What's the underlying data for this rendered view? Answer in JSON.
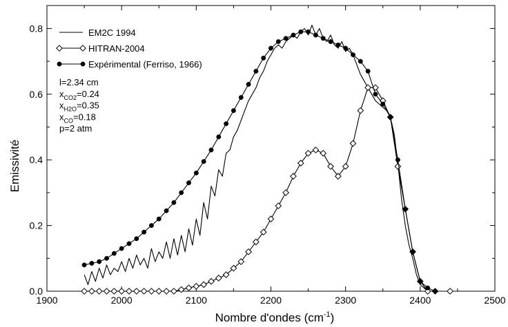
{
  "chart_data": {
    "type": "line",
    "xlabel": "Nombre d'ondes (cm",
    "xlabel_sup": "-1",
    "xlabel_end": ")",
    "ylabel": "Emissivité",
    "xlim": [
      1900,
      2500
    ],
    "ylim": [
      0,
      0.87
    ],
    "x_ticks": [
      1900,
      2000,
      2100,
      2200,
      2300,
      2400,
      2500
    ],
    "y_ticks": [
      0.0,
      0.2,
      0.4,
      0.6,
      0.8
    ],
    "grid": false,
    "legend_position": "top-left",
    "series": [
      {
        "name": "EM2C 1994",
        "marker": "none",
        "x": [
          1950,
          1955,
          1960,
          1965,
          1970,
          1975,
          1980,
          1985,
          1990,
          1995,
          2000,
          2005,
          2010,
          2015,
          2020,
          2025,
          2030,
          2035,
          2040,
          2045,
          2050,
          2055,
          2060,
          2065,
          2070,
          2075,
          2080,
          2085,
          2090,
          2095,
          2100,
          2105,
          2110,
          2115,
          2120,
          2125,
          2130,
          2135,
          2140,
          2145,
          2150,
          2155,
          2160,
          2165,
          2170,
          2175,
          2180,
          2185,
          2190,
          2195,
          2200,
          2205,
          2210,
          2215,
          2220,
          2225,
          2230,
          2235,
          2240,
          2245,
          2250,
          2255,
          2260,
          2265,
          2270,
          2275,
          2280,
          2285,
          2290,
          2295,
          2300,
          2305,
          2310,
          2315,
          2320,
          2325,
          2330,
          2335,
          2340,
          2345,
          2350,
          2355,
          2360,
          2365,
          2370,
          2375,
          2380,
          2385,
          2390,
          2395,
          2400,
          2405,
          2410,
          2420,
          2440
        ],
        "y": [
          0.05,
          0.02,
          0.06,
          0.03,
          0.07,
          0.04,
          0.08,
          0.05,
          0.07,
          0.06,
          0.09,
          0.06,
          0.1,
          0.07,
          0.11,
          0.08,
          0.1,
          0.07,
          0.13,
          0.09,
          0.12,
          0.1,
          0.15,
          0.1,
          0.16,
          0.11,
          0.17,
          0.12,
          0.19,
          0.14,
          0.22,
          0.17,
          0.27,
          0.22,
          0.32,
          0.29,
          0.37,
          0.35,
          0.42,
          0.43,
          0.47,
          0.49,
          0.52,
          0.55,
          0.58,
          0.6,
          0.62,
          0.65,
          0.67,
          0.7,
          0.72,
          0.74,
          0.75,
          0.74,
          0.76,
          0.77,
          0.78,
          0.77,
          0.79,
          0.8,
          0.78,
          0.81,
          0.78,
          0.8,
          0.77,
          0.76,
          0.78,
          0.75,
          0.74,
          0.76,
          0.73,
          0.74,
          0.72,
          0.69,
          0.66,
          0.64,
          0.62,
          0.6,
          0.58,
          0.57,
          0.56,
          0.55,
          0.53,
          0.48,
          0.39,
          0.28,
          0.2,
          0.14,
          0.1,
          0.05,
          0.02,
          0.01,
          0.0,
          0.0,
          0.0
        ]
      },
      {
        "name": "HITRAN-2004",
        "marker": "diamond-open",
        "x": [
          1950,
          1960,
          1970,
          1980,
          1990,
          2000,
          2010,
          2020,
          2030,
          2040,
          2050,
          2060,
          2070,
          2080,
          2090,
          2100,
          2110,
          2120,
          2130,
          2140,
          2150,
          2160,
          2170,
          2180,
          2190,
          2200,
          2210,
          2220,
          2230,
          2240,
          2250,
          2260,
          2270,
          2280,
          2290,
          2300,
          2310,
          2320,
          2330,
          2340,
          2350,
          2360,
          2370,
          2380,
          2390,
          2400,
          2410,
          2420,
          2440
        ],
        "y": [
          0.0,
          0.0,
          0.0,
          0.0,
          0.0,
          0.0,
          0.0,
          0.0,
          0.0,
          0.0,
          0.0,
          0.0,
          0.0,
          0.005,
          0.01,
          0.015,
          0.02,
          0.03,
          0.04,
          0.05,
          0.07,
          0.09,
          0.12,
          0.15,
          0.18,
          0.22,
          0.26,
          0.3,
          0.35,
          0.39,
          0.42,
          0.43,
          0.42,
          0.38,
          0.35,
          0.38,
          0.45,
          0.55,
          0.62,
          0.62,
          0.58,
          0.53,
          0.38,
          0.25,
          0.12,
          0.03,
          0.0,
          0.0,
          0.0
        ]
      },
      {
        "name": "Expérimental (Ferriso, 1966)",
        "marker": "circle-filled",
        "x": [
          1950,
          1960,
          1970,
          1980,
          1990,
          2000,
          2010,
          2020,
          2030,
          2040,
          2050,
          2060,
          2070,
          2080,
          2090,
          2100,
          2110,
          2120,
          2130,
          2140,
          2150,
          2160,
          2170,
          2180,
          2190,
          2200,
          2210,
          2220,
          2230,
          2240,
          2250,
          2260,
          2270,
          2280,
          2290,
          2300,
          2310,
          2320,
          2330,
          2340,
          2350,
          2360,
          2370,
          2380,
          2390,
          2400,
          2410,
          2420
        ],
        "y": [
          0.08,
          0.085,
          0.09,
          0.1,
          0.115,
          0.13,
          0.145,
          0.16,
          0.18,
          0.2,
          0.22,
          0.245,
          0.27,
          0.3,
          0.33,
          0.36,
          0.395,
          0.43,
          0.47,
          0.51,
          0.55,
          0.59,
          0.63,
          0.67,
          0.71,
          0.74,
          0.76,
          0.77,
          0.78,
          0.79,
          0.79,
          0.78,
          0.77,
          0.76,
          0.75,
          0.74,
          0.72,
          0.7,
          0.67,
          0.6,
          0.57,
          0.53,
          0.4,
          0.25,
          0.12,
          0.03,
          0.01,
          0.0
        ]
      }
    ],
    "annotations": [
      {
        "base": "l=2.34 cm",
        "sub": "",
        "rest": ""
      },
      {
        "base": "x",
        "sub": "CO2",
        "rest": "=0.24"
      },
      {
        "base": "x",
        "sub": "H2O",
        "rest": "=0.35"
      },
      {
        "base": "x",
        "sub": "CO",
        "rest": "=0.18"
      },
      {
        "base": "p=2 atm",
        "sub": "",
        "rest": ""
      }
    ]
  }
}
